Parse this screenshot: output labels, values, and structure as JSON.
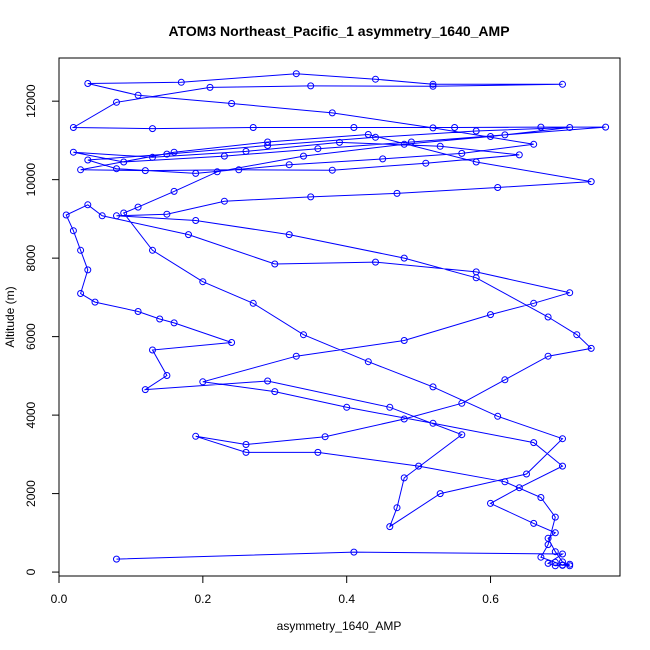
{
  "chart_data": {
    "type": "line",
    "title": "ATOM3 Northeast_Pacific_1 asymmetry_1640_AMP",
    "xlabel": "asymmetry_1640_AMP",
    "ylabel": "Altitude (m)",
    "xlim": [
      0.0,
      0.78
    ],
    "ylim": [
      -100,
      13100
    ],
    "xticks": [
      0.0,
      0.2,
      0.4,
      0.6
    ],
    "xtick_labels": [
      "0.0",
      "0.2",
      "0.4",
      "0.6"
    ],
    "yticks": [
      0,
      2000,
      4000,
      6000,
      8000,
      10000,
      12000
    ],
    "ytick_labels": [
      "0",
      "2000",
      "4000",
      "6000",
      "8000",
      "10000",
      "12000"
    ],
    "grid": false,
    "series": [
      {
        "color": "#0000ff",
        "marker": "open-circle",
        "points": [
          [
            0.08,
            330
          ],
          [
            0.41,
            510
          ],
          [
            0.7,
            460
          ],
          [
            0.68,
            220
          ],
          [
            0.69,
            160
          ],
          [
            0.7,
            180
          ],
          [
            0.71,
            160
          ],
          [
            0.7,
            260
          ],
          [
            0.69,
            520
          ],
          [
            0.68,
            860
          ],
          [
            0.69,
            1000
          ],
          [
            0.66,
            1240
          ],
          [
            0.6,
            1750
          ],
          [
            0.64,
            2150
          ],
          [
            0.7,
            2700
          ],
          [
            0.66,
            3300
          ],
          [
            0.52,
            3790
          ],
          [
            0.4,
            4200
          ],
          [
            0.3,
            4600
          ],
          [
            0.2,
            4850
          ],
          [
            0.33,
            5500
          ],
          [
            0.48,
            5900
          ],
          [
            0.6,
            6560
          ],
          [
            0.66,
            6850
          ],
          [
            0.71,
            7120
          ],
          [
            0.58,
            7650
          ],
          [
            0.44,
            7900
          ],
          [
            0.3,
            7850
          ],
          [
            0.18,
            8600
          ],
          [
            0.06,
            9080
          ],
          [
            0.04,
            9360
          ],
          [
            0.01,
            9100
          ],
          [
            0.02,
            8700
          ],
          [
            0.03,
            8200
          ],
          [
            0.04,
            7700
          ],
          [
            0.03,
            7100
          ],
          [
            0.05,
            6880
          ],
          [
            0.11,
            6640
          ],
          [
            0.14,
            6450
          ],
          [
            0.16,
            6350
          ],
          [
            0.24,
            5850
          ],
          [
            0.13,
            5660
          ],
          [
            0.15,
            5010
          ],
          [
            0.12,
            4650
          ],
          [
            0.29,
            4870
          ],
          [
            0.46,
            4200
          ],
          [
            0.56,
            3500
          ],
          [
            0.48,
            2400
          ],
          [
            0.47,
            1640
          ],
          [
            0.46,
            1160
          ],
          [
            0.53,
            2000
          ],
          [
            0.65,
            2500
          ],
          [
            0.7,
            3400
          ],
          [
            0.61,
            3970
          ],
          [
            0.52,
            4720
          ],
          [
            0.43,
            5360
          ],
          [
            0.34,
            6050
          ],
          [
            0.27,
            6850
          ],
          [
            0.2,
            7400
          ],
          [
            0.13,
            8200
          ],
          [
            0.09,
            9150
          ],
          [
            0.11,
            9300
          ],
          [
            0.16,
            9700
          ],
          [
            0.22,
            10200
          ],
          [
            0.34,
            10600
          ],
          [
            0.48,
            10900
          ],
          [
            0.6,
            11100
          ],
          [
            0.71,
            11330
          ],
          [
            0.58,
            11240
          ],
          [
            0.44,
            11080
          ],
          [
            0.29,
            10870
          ],
          [
            0.15,
            10650
          ],
          [
            0.04,
            10500
          ],
          [
            0.08,
            10280
          ],
          [
            0.19,
            10160
          ],
          [
            0.32,
            10380
          ],
          [
            0.45,
            10530
          ],
          [
            0.56,
            10670
          ],
          [
            0.66,
            10900
          ],
          [
            0.52,
            11320
          ],
          [
            0.38,
            11700
          ],
          [
            0.24,
            11940
          ],
          [
            0.11,
            12150
          ],
          [
            0.04,
            12450
          ],
          [
            0.17,
            12480
          ],
          [
            0.33,
            12700
          ],
          [
            0.44,
            12560
          ],
          [
            0.52,
            12430
          ],
          [
            0.7,
            12430
          ],
          [
            0.52,
            12380
          ],
          [
            0.35,
            12390
          ],
          [
            0.21,
            12350
          ],
          [
            0.08,
            11970
          ],
          [
            0.02,
            11330
          ],
          [
            0.13,
            11300
          ],
          [
            0.27,
            11330
          ],
          [
            0.41,
            11330
          ],
          [
            0.55,
            11330
          ],
          [
            0.67,
            11340
          ],
          [
            0.76,
            11340
          ],
          [
            0.62,
            11140
          ],
          [
            0.49,
            10960
          ],
          [
            0.36,
            10790
          ],
          [
            0.23,
            10600
          ],
          [
            0.09,
            10450
          ],
          [
            0.02,
            10700
          ],
          [
            0.13,
            10570
          ],
          [
            0.26,
            10720
          ],
          [
            0.39,
            10950
          ],
          [
            0.53,
            10850
          ],
          [
            0.64,
            10630
          ],
          [
            0.51,
            10420
          ],
          [
            0.38,
            10240
          ],
          [
            0.25,
            10250
          ],
          [
            0.12,
            10230
          ],
          [
            0.03,
            10250
          ],
          [
            0.16,
            10700
          ],
          [
            0.29,
            10960
          ],
          [
            0.43,
            11150
          ],
          [
            0.58,
            10450
          ],
          [
            0.74,
            9950
          ],
          [
            0.61,
            9800
          ],
          [
            0.47,
            9650
          ],
          [
            0.35,
            9560
          ],
          [
            0.23,
            9450
          ],
          [
            0.15,
            9120
          ],
          [
            0.08,
            9080
          ],
          [
            0.19,
            8960
          ],
          [
            0.32,
            8600
          ],
          [
            0.48,
            8000
          ],
          [
            0.58,
            7500
          ],
          [
            0.68,
            6500
          ],
          [
            0.72,
            6050
          ],
          [
            0.74,
            5700
          ],
          [
            0.68,
            5500
          ],
          [
            0.62,
            4900
          ],
          [
            0.56,
            4300
          ],
          [
            0.48,
            3900
          ],
          [
            0.37,
            3450
          ],
          [
            0.26,
            3250
          ],
          [
            0.19,
            3460
          ],
          [
            0.26,
            3050
          ],
          [
            0.36,
            3050
          ],
          [
            0.5,
            2700
          ],
          [
            0.62,
            2300
          ],
          [
            0.67,
            1900
          ],
          [
            0.69,
            1400
          ],
          [
            0.68,
            700
          ],
          [
            0.67,
            380
          ],
          [
            0.69,
            250
          ],
          [
            0.7,
            170
          ],
          [
            0.71,
            200
          ]
        ]
      }
    ]
  }
}
